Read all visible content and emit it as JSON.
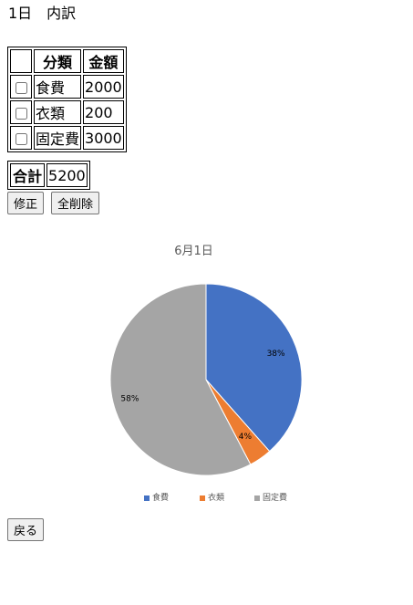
{
  "page": {
    "title": "1日　内訳"
  },
  "table": {
    "headers": {
      "blank": "",
      "category": "分類",
      "amount": "金額"
    },
    "rows": [
      {
        "category": "食費",
        "amount": "2000"
      },
      {
        "category": "衣類",
        "amount": "200"
      },
      {
        "category": "固定費",
        "amount": "3000"
      }
    ],
    "total": {
      "label": "合計",
      "value": "5200"
    }
  },
  "buttons": {
    "edit": "修正",
    "delete_all": "全削除",
    "back": "戻る"
  },
  "chart_data": {
    "type": "pie",
    "title": "6月1日",
    "categories": [
      "食費",
      "衣類",
      "固定費"
    ],
    "values": [
      2000,
      200,
      3000
    ],
    "labels": [
      "38%",
      "4%",
      "58%"
    ],
    "colors": [
      "#4472c4",
      "#ed7d31",
      "#a5a5a5"
    ],
    "legend": "bottom"
  }
}
